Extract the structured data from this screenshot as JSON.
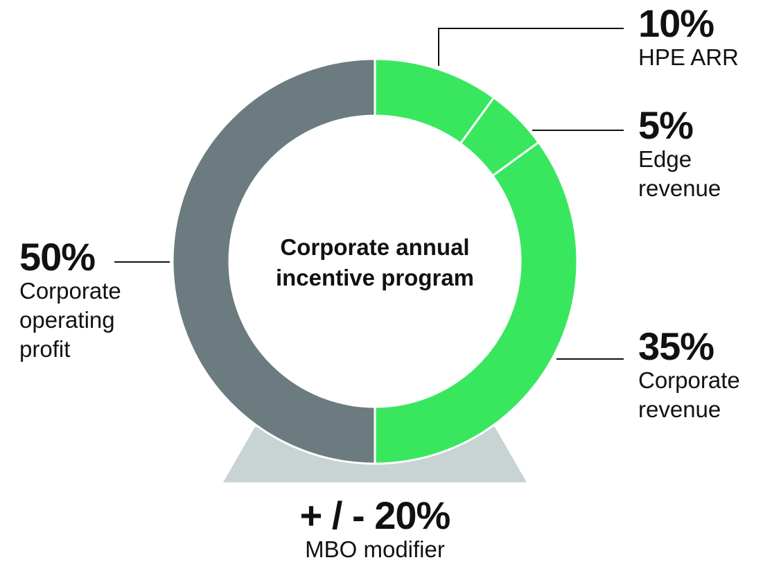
{
  "chart_data": {
    "type": "pie",
    "subtype": "donut",
    "title": "Corporate annual incentive program",
    "categories": [
      "HPE ARR",
      "Edge revenue",
      "Corporate revenue",
      "Corporate operating profit"
    ],
    "values": [
      10,
      5,
      35,
      50
    ],
    "unit": "%",
    "colors": [
      "#39e75f",
      "#39e75f",
      "#39e75f",
      "#6b7b7f"
    ],
    "modifier": {
      "label": "MBO modifier",
      "value": "+ / - 20%",
      "color": "#c8d3d3"
    }
  },
  "center": {
    "line1": "Corporate annual",
    "line2": "incentive program"
  },
  "labels": {
    "hpe_arr": {
      "pct": "10%",
      "lines": [
        "HPE ARR"
      ]
    },
    "edge": {
      "pct": "5%",
      "lines": [
        "Edge",
        "revenue"
      ]
    },
    "corp_rev": {
      "pct": "35%",
      "lines": [
        "Corporate",
        "revenue"
      ]
    },
    "corp_op": {
      "pct": "50%",
      "lines": [
        "Corporate",
        "operating",
        "profit"
      ]
    },
    "mbo": {
      "pct": "+ / - 20%",
      "lines": [
        "MBO modifier"
      ]
    }
  },
  "colors": {
    "green": "#39e75f",
    "gray": "#6b7b7f",
    "base": "#c8d3d3",
    "leader": "#111111"
  }
}
